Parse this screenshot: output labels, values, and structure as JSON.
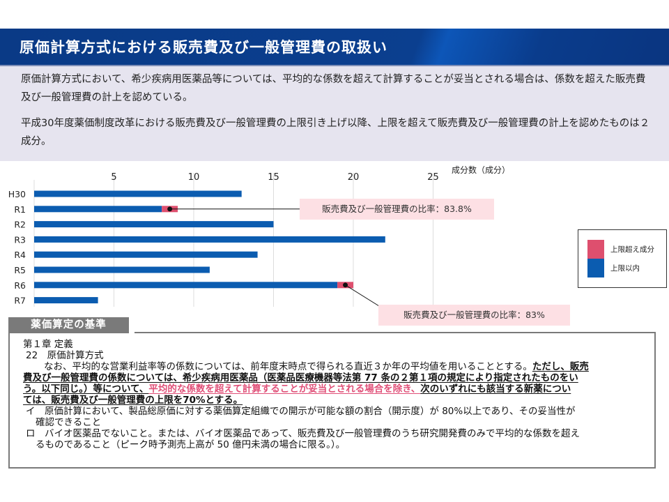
{
  "header": {
    "title": "原価計算方式における販売費及び一般管理費の取扱い"
  },
  "summary": {
    "p1": "原価計算方式において、希少疾病用医薬品等については、平均的な係数を超えて計算することが妥当とされる場合は、係数を超えた販売費及び一般管理費の計上を認めている。",
    "p2": "平成30年度薬価制度改革における販売費及び一般管理費の上限引き上げ以降、上限を超えて販売費及び一般管理費の計上を認めたものは２成分。"
  },
  "chart_data": {
    "type": "bar",
    "orientation": "horizontal",
    "stacked": true,
    "title": "",
    "xlabel": "成分数（成分）",
    "ylabel": "",
    "xlim": [
      0,
      27
    ],
    "x_ticks": [
      5,
      10,
      15,
      20,
      25
    ],
    "grid": true,
    "categories": [
      "H30",
      "R1",
      "R2",
      "R3",
      "R4",
      "R5",
      "R6",
      "R7"
    ],
    "series": [
      {
        "name": "上限以内",
        "color": "#0b5cb0",
        "values": [
          13,
          8,
          15,
          22,
          14,
          11,
          19,
          4
        ]
      },
      {
        "name": "上限超え成分",
        "color": "#de4f6e",
        "values": [
          0,
          1,
          0,
          0,
          0,
          0,
          1,
          0
        ]
      }
    ],
    "legend": {
      "position": "right",
      "entries": [
        "上限超え成分",
        "上限以内"
      ]
    },
    "annotations": [
      {
        "category": "R1",
        "text": "販売費及び一般管理費の比率：83.8%"
      },
      {
        "category": "R6",
        "text": "販売費及び一般管理費の比率：83%"
      }
    ]
  },
  "kijun": {
    "tab_label": "薬価算定の基準",
    "chapter": "第１章 定義",
    "section": "22　原価計算方式",
    "para_plain": "なお、平均的な営業利益率等の係数については、前年度末時点で得られる直近３か年の平均値を用いることとする。",
    "para_bold1": "ただし、販売",
    "para_line2": "費及び一般管理費の係数については、希少疾病用医薬品（医薬品医療機器等法第 77 条の２第１項の規定により指定されたものをい",
    "para_line3a": "う。以下同じ。）等について、",
    "para_line3_pink": "平均的な係数を超えて計算することが妥当とされる場合を除き、",
    "para_line3b": "次のいずれにも該当する新薬につい",
    "para_line4": "ては、販売費及び一般管理費の上限を70%とする。",
    "item_i_1": "イ　原価計算において、製品総原価に対する薬価算定組織での開示が可能な額の割合（開示度）が 80%以上であり、その妥当性が",
    "item_i_2": "確認できること",
    "item_ro_1": "ロ　バイオ医薬品でないこと。または、バイオ医薬品であって、販売費及び一般管理費のうち研究開発費のみで平均的な係数を超え",
    "item_ro_2": "るものであること（ピーク時予測売上高が 50 億円未満の場合に限る。）。"
  }
}
